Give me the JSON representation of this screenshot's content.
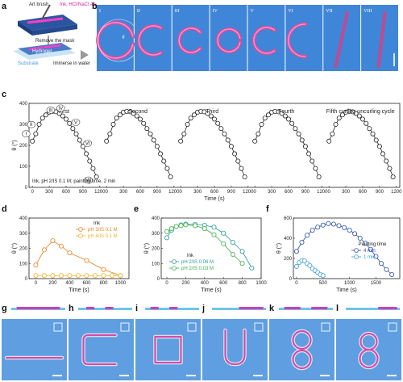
{
  "panel_labels": [
    "a",
    "b",
    "c",
    "d",
    "e",
    "f",
    "g",
    "h",
    "i",
    "j",
    "k",
    "l"
  ],
  "schematic": {
    "art_brush": "Art brush",
    "ink": "Ink, HCl/NaCl aq",
    "remove_mask": "Remove the mask",
    "hydrogel": "Hydrogel",
    "substrate": "Substrate",
    "immerse": "Immerse in water"
  },
  "photo_b_labels": [
    "I",
    "II",
    "III",
    "IV",
    "V",
    "VI",
    "VII",
    "VIII"
  ],
  "photo_b_theta": "θ",
  "chart_data": [
    {
      "panel": "c",
      "type": "scatter",
      "ylabel": "θ (°)",
      "xlabel": "Time (s)",
      "ylim": [
        0,
        400
      ],
      "yticks": [
        "0",
        "100",
        "200",
        "300",
        "400"
      ],
      "xticks": [
        "0",
        "300",
        "600",
        "900",
        "1200"
      ],
      "cycle_titles": [
        "First",
        "Second",
        "Third",
        "Fourth",
        "Fifth curling-uncurling cycle"
      ],
      "stage_labels": [
        "I",
        "II",
        "III",
        "IV",
        "V",
        "VI",
        "VII"
      ],
      "note": "Ink, pH 2/IS 0.1 M; painting time, 2 min",
      "x": [
        0,
        60,
        120,
        180,
        240,
        300,
        360,
        420,
        480,
        540,
        600,
        660,
        720,
        780,
        840,
        900,
        960,
        1020,
        1080,
        1140
      ],
      "y": [
        220,
        255,
        300,
        330,
        345,
        358,
        362,
        360,
        352,
        340,
        325,
        305,
        280,
        255,
        225,
        195,
        160,
        125,
        90,
        50
      ]
    },
    {
      "panel": "d",
      "type": "scatter",
      "ylabel": "θ (°)",
      "xlabel": "Time (s)",
      "ylim": [
        0,
        400
      ],
      "yticks": [
        "0",
        "100",
        "200",
        "300",
        "400"
      ],
      "xticks": [
        "0",
        "200",
        "400",
        "600",
        "800",
        "1000"
      ],
      "legend_title": "Ink",
      "series": [
        {
          "name": "pH 3/IS 0.1 M",
          "color": "#e8821e",
          "x": [
            0,
            100,
            200,
            300,
            400,
            600,
            800,
            1000
          ],
          "y": [
            90,
            190,
            250,
            215,
            170,
            120,
            60,
            20
          ]
        },
        {
          "name": "pH 4/IS 0.1 M",
          "color": "#f0b020",
          "x": [
            0,
            100,
            200,
            300,
            400,
            500,
            600,
            700,
            800,
            900,
            1000
          ],
          "y": [
            20,
            20,
            20,
            20,
            20,
            20,
            20,
            20,
            20,
            20,
            20
          ]
        }
      ]
    },
    {
      "panel": "e",
      "type": "scatter",
      "ylabel": "θ (°)",
      "xlabel": "Time (s)",
      "ylim": [
        0,
        400
      ],
      "yticks": [
        "0",
        "100",
        "200",
        "300",
        "400"
      ],
      "xticks": [
        "0",
        "200",
        "400",
        "600",
        "800",
        "1000"
      ],
      "legend_title": "Ink",
      "series": [
        {
          "name": "pH 2/IS 0.06 M",
          "color": "#2a9a9a",
          "x": [
            0,
            50,
            100,
            150,
            200,
            300,
            400,
            500,
            600,
            700,
            800,
            900
          ],
          "y": [
            270,
            320,
            345,
            355,
            360,
            358,
            352,
            340,
            300,
            240,
            180,
            70
          ]
        },
        {
          "name": "pH 2/IS 0.03 M",
          "color": "#3cb043",
          "x": [
            0,
            50,
            100,
            150,
            200,
            300,
            400,
            500,
            600,
            700,
            800
          ],
          "y": [
            310,
            330,
            345,
            350,
            355,
            350,
            330,
            290,
            230,
            160,
            100
          ]
        }
      ]
    },
    {
      "panel": "f",
      "type": "scatter",
      "ylabel": "θ (°)",
      "xlabel": "Time (s)",
      "ylim": [
        0,
        600
      ],
      "yticks": [
        "0",
        "200",
        "400",
        "600"
      ],
      "xticks": [
        "0",
        "500",
        "1000",
        "1500"
      ],
      "legend_title": "Painting time",
      "series": [
        {
          "name": "4 min",
          "color": "#2b4fa8",
          "x": [
            0,
            100,
            200,
            300,
            400,
            500,
            600,
            700,
            800,
            900,
            1000,
            1100,
            1200,
            1300,
            1400,
            1500,
            1600,
            1700,
            1800
          ],
          "y": [
            270,
            360,
            430,
            480,
            510,
            530,
            545,
            540,
            525,
            505,
            480,
            445,
            400,
            350,
            290,
            220,
            150,
            90,
            40
          ]
        },
        {
          "name": "1 min",
          "color": "#3d9fd8",
          "x": [
            0,
            50,
            100,
            150,
            200,
            250,
            300,
            350,
            400,
            450,
            500
          ],
          "y": [
            120,
            160,
            180,
            175,
            150,
            130,
            100,
            80,
            60,
            40,
            30
          ]
        }
      ]
    }
  ],
  "photo_row_bottom_panels": [
    "g",
    "h",
    "i",
    "j",
    "k",
    "l"
  ]
}
